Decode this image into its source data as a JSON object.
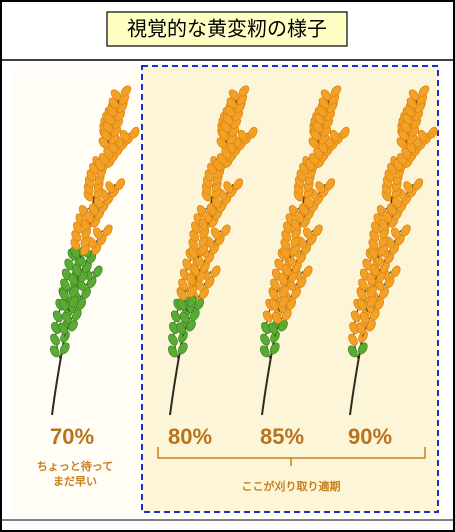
{
  "title": "視覚的な黄変籾の様子",
  "stages": [
    {
      "label": "70%",
      "note": [
        "ちょっと待って",
        "まだ早い"
      ]
    },
    {
      "label": "80%"
    },
    {
      "label": "85%"
    },
    {
      "label": "90%"
    }
  ],
  "bracket_label": "ここが刈り取り適期"
}
